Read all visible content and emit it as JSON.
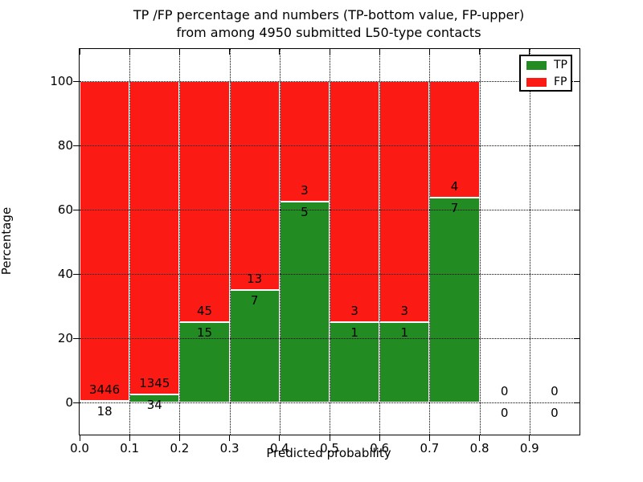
{
  "figure": {
    "title_line1": "TP /FP percentage and numbers (TP-bottom value, FP-upper)",
    "title_line2": "from among 4950 submitted L50-type contacts",
    "xlabel": "Predicted probability",
    "ylabel": "Percentage"
  },
  "legend": {
    "items": [
      {
        "label": "TP",
        "color": "#228b22"
      },
      {
        "label": "FP",
        "color": "#fc1a15"
      }
    ]
  },
  "chart_data": {
    "type": "bar",
    "stacked": true,
    "normalized_to_percent": true,
    "title": "TP /FP percentage and numbers (TP-bottom value, FP-upper)\nfrom among 4950 submitted L50-type contacts",
    "xlabel": "Predicted probability",
    "ylabel": "Percentage",
    "xlim": [
      0.0,
      1.0
    ],
    "ylim": [
      -10,
      110
    ],
    "grid": "dotted black, both axes",
    "legend_position": "upper right",
    "bin_width": 0.1,
    "bin_starts": [
      0.0,
      0.1,
      0.2,
      0.3,
      0.4,
      0.5,
      0.6,
      0.7,
      0.8,
      0.9
    ],
    "xtick_labels": [
      "0.0",
      "0.1",
      "0.2",
      "0.3",
      "0.4",
      "0.5",
      "0.6",
      "0.7",
      "0.8",
      "0.9"
    ],
    "ytick_values": [
      0,
      20,
      40,
      60,
      80,
      100
    ],
    "series": [
      {
        "name": "TP",
        "color": "#228b22",
        "counts": [
          18,
          34,
          15,
          7,
          5,
          1,
          1,
          7,
          0,
          0
        ]
      },
      {
        "name": "FP",
        "color": "#fc1a15",
        "counts": [
          3446,
          1345,
          45,
          13,
          3,
          3,
          3,
          4,
          0,
          0
        ]
      }
    ],
    "tp_percent_of_bin": [
      0.52,
      2.47,
      25.0,
      35.0,
      62.5,
      25.0,
      25.0,
      63.64,
      0,
      0
    ],
    "total_submitted": 4950
  }
}
